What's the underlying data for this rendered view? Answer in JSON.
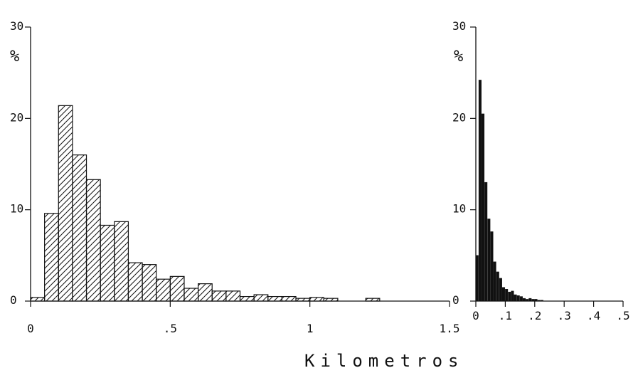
{
  "chart_data": [
    {
      "type": "bar",
      "style": "hatched",
      "bin_width": 0.05,
      "xlim": [
        0,
        1.5
      ],
      "ylim": [
        0,
        30
      ],
      "x_ticks": [
        0,
        0.5,
        1,
        1.5
      ],
      "x_tick_labels": [
        "0",
        ".5",
        "1",
        "1.5"
      ],
      "y_ticks": [
        0,
        10,
        20,
        30
      ],
      "y_tick_labels": [
        "0",
        "10",
        "20",
        "30"
      ],
      "ylabel": "%",
      "bins_start": [
        0,
        0.05,
        0.1,
        0.15,
        0.2,
        0.25,
        0.3,
        0.35,
        0.4,
        0.45,
        0.5,
        0.55,
        0.6,
        0.65,
        0.7,
        0.75,
        0.8,
        0.85,
        0.9,
        0.95,
        1.0,
        1.05,
        1.2
      ],
      "values": [
        0.4,
        9.6,
        21.4,
        16.0,
        13.3,
        8.3,
        8.7,
        4.2,
        4.0,
        2.4,
        2.7,
        1.4,
        1.9,
        1.1,
        1.1,
        0.5,
        0.7,
        0.5,
        0.5,
        0.3,
        0.4,
        0.3,
        0.3
      ]
    },
    {
      "type": "bar",
      "style": "solid",
      "bin_width": 0.01,
      "xlim": [
        0,
        0.5
      ],
      "ylim": [
        0,
        30
      ],
      "x_ticks": [
        0,
        0.1,
        0.2,
        0.3,
        0.4,
        0.5
      ],
      "x_tick_labels": [
        "0",
        ".1",
        ".2",
        ".3",
        ".4",
        ".5"
      ],
      "y_ticks": [
        0,
        10,
        20,
        30
      ],
      "y_tick_labels": [
        "0",
        "10",
        "20",
        "30"
      ],
      "ylabel": "%",
      "bins_start": [
        0,
        0.01,
        0.02,
        0.03,
        0.04,
        0.05,
        0.06,
        0.07,
        0.08,
        0.09,
        0.1,
        0.11,
        0.12,
        0.13,
        0.14,
        0.15,
        0.16,
        0.17,
        0.18,
        0.19,
        0.2,
        0.21,
        0.22
      ],
      "values": [
        5.0,
        24.2,
        20.5,
        13.0,
        9.0,
        7.6,
        4.3,
        3.2,
        2.5,
        1.5,
        1.3,
        1.0,
        1.1,
        0.7,
        0.6,
        0.5,
        0.3,
        0.2,
        0.3,
        0.2,
        0.2,
        0.1,
        0.1
      ]
    }
  ],
  "xlabel": "Kilometros"
}
